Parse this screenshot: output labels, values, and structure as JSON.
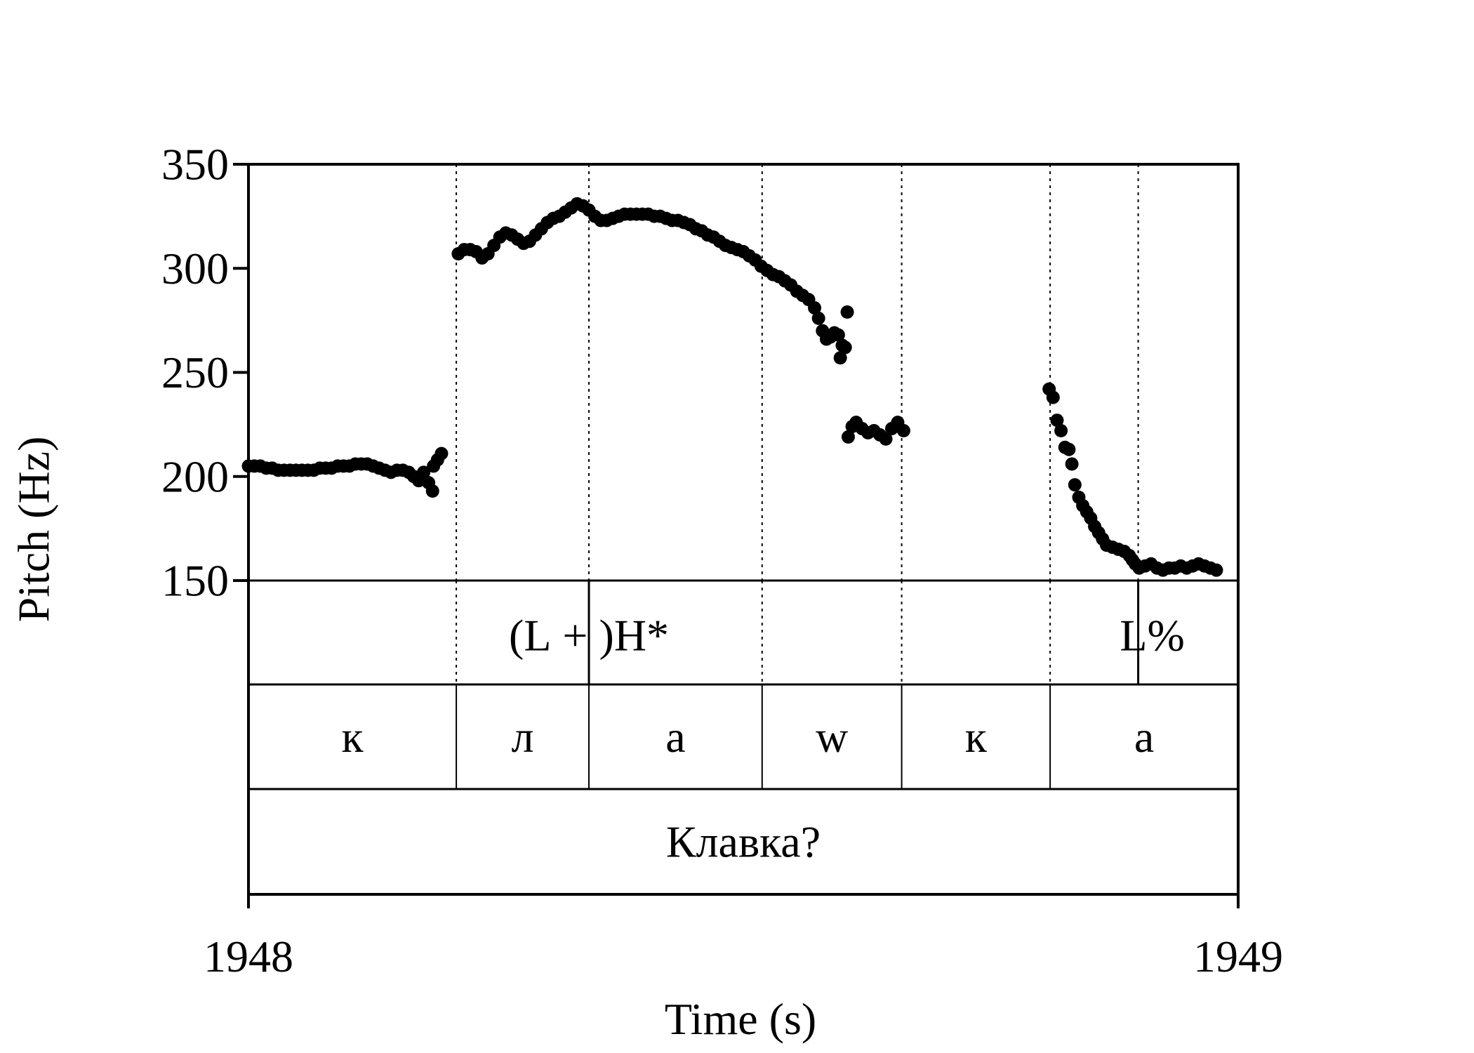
{
  "chart_data": {
    "type": "scatter",
    "title": "",
    "xlabel": "Time (s)",
    "ylabel": "Pitch (Hz)",
    "xlim": [
      1948,
      1949
    ],
    "ylim": [
      150,
      350
    ],
    "x_tick_labels": [
      "1948",
      "1949"
    ],
    "y_tick_labels": [
      "150",
      "200",
      "250",
      "300",
      "350"
    ],
    "y_ticks": [
      150,
      200,
      250,
      300,
      350
    ],
    "grid": false,
    "marker_color": "#000000",
    "boundaries": [
      1948.21,
      1948.344,
      1948.519,
      1948.66,
      1948.81,
      1948.899
    ],
    "tiers": {
      "tones": {
        "labels": [
          "(L + )H*",
          "L%"
        ],
        "points": [
          1948.344,
          1948.899
        ]
      },
      "segments": [
        {
          "label": "к",
          "start": 1948.0,
          "end": 1948.21
        },
        {
          "label": "л",
          "start": 1948.21,
          "end": 1948.344
        },
        {
          "label": "а",
          "start": 1948.344,
          "end": 1948.519
        },
        {
          "label": "w",
          "start": 1948.519,
          "end": 1948.66
        },
        {
          "label": "к",
          "start": 1948.66,
          "end": 1948.81
        },
        {
          "label": "а",
          "start": 1948.81,
          "end": 1949.0
        }
      ],
      "word": "Клавка?"
    },
    "series": [
      {
        "points": [
          [
            1948.0,
            205
          ],
          [
            1948.006,
            205
          ],
          [
            1948.012,
            205
          ],
          [
            1948.018,
            204
          ],
          [
            1948.024,
            204
          ],
          [
            1948.03,
            203
          ],
          [
            1948.036,
            203
          ],
          [
            1948.042,
            203
          ],
          [
            1948.048,
            203
          ],
          [
            1948.054,
            203
          ],
          [
            1948.06,
            203
          ],
          [
            1948.066,
            203
          ],
          [
            1948.072,
            204
          ],
          [
            1948.078,
            204
          ],
          [
            1948.084,
            204
          ],
          [
            1948.09,
            205
          ],
          [
            1948.096,
            205
          ],
          [
            1948.102,
            205
          ],
          [
            1948.108,
            206
          ],
          [
            1948.114,
            206
          ],
          [
            1948.12,
            206
          ],
          [
            1948.126,
            205
          ],
          [
            1948.132,
            204
          ],
          [
            1948.138,
            203
          ],
          [
            1948.144,
            202
          ],
          [
            1948.15,
            203
          ],
          [
            1948.156,
            203
          ],
          [
            1948.162,
            202
          ],
          [
            1948.167,
            200
          ],
          [
            1948.172,
            198
          ],
          [
            1948.177,
            202
          ],
          [
            1948.182,
            197
          ],
          [
            1948.186,
            193
          ],
          [
            1948.187,
            205
          ],
          [
            1948.191,
            208
          ],
          [
            1948.195,
            211
          ],
          [
            1948.212,
            307
          ],
          [
            1948.218,
            309
          ],
          [
            1948.224,
            309
          ],
          [
            1948.23,
            308
          ],
          [
            1948.236,
            305
          ],
          [
            1948.242,
            307
          ],
          [
            1948.248,
            311
          ],
          [
            1948.254,
            315
          ],
          [
            1948.26,
            317
          ],
          [
            1948.266,
            316
          ],
          [
            1948.272,
            314
          ],
          [
            1948.278,
            312
          ],
          [
            1948.284,
            313
          ],
          [
            1948.29,
            316
          ],
          [
            1948.296,
            319
          ],
          [
            1948.302,
            322
          ],
          [
            1948.308,
            324
          ],
          [
            1948.314,
            325
          ],
          [
            1948.32,
            327
          ],
          [
            1948.326,
            329
          ],
          [
            1948.332,
            331
          ],
          [
            1948.338,
            330
          ],
          [
            1948.344,
            328
          ],
          [
            1948.35,
            325
          ],
          [
            1948.356,
            323
          ],
          [
            1948.362,
            323
          ],
          [
            1948.368,
            324
          ],
          [
            1948.374,
            325
          ],
          [
            1948.38,
            326
          ],
          [
            1948.386,
            326
          ],
          [
            1948.392,
            326
          ],
          [
            1948.398,
            326
          ],
          [
            1948.404,
            326
          ],
          [
            1948.41,
            325
          ],
          [
            1948.416,
            325
          ],
          [
            1948.422,
            324
          ],
          [
            1948.428,
            323
          ],
          [
            1948.434,
            323
          ],
          [
            1948.44,
            322
          ],
          [
            1948.446,
            321
          ],
          [
            1948.452,
            319
          ],
          [
            1948.458,
            318
          ],
          [
            1948.464,
            316
          ],
          [
            1948.47,
            315
          ],
          [
            1948.476,
            313
          ],
          [
            1948.482,
            311
          ],
          [
            1948.488,
            310
          ],
          [
            1948.494,
            309
          ],
          [
            1948.5,
            308
          ],
          [
            1948.506,
            306
          ],
          [
            1948.512,
            304
          ],
          [
            1948.518,
            301
          ],
          [
            1948.524,
            299
          ],
          [
            1948.53,
            297
          ],
          [
            1948.536,
            296
          ],
          [
            1948.542,
            294
          ],
          [
            1948.548,
            292
          ],
          [
            1948.554,
            289
          ],
          [
            1948.56,
            287
          ],
          [
            1948.566,
            285
          ],
          [
            1948.572,
            281
          ],
          [
            1948.576,
            276
          ],
          [
            1948.58,
            270
          ],
          [
            1948.584,
            266
          ],
          [
            1948.588,
            267
          ],
          [
            1948.592,
            269
          ],
          [
            1948.596,
            268
          ],
          [
            1948.6,
            263
          ],
          [
            1948.598,
            257
          ],
          [
            1948.603,
            262
          ],
          [
            1948.605,
            279
          ],
          [
            1948.606,
            219
          ],
          [
            1948.61,
            224
          ],
          [
            1948.614,
            226
          ],
          [
            1948.62,
            223
          ],
          [
            1948.626,
            221
          ],
          [
            1948.632,
            222
          ],
          [
            1948.638,
            220
          ],
          [
            1948.644,
            218
          ],
          [
            1948.65,
            223
          ],
          [
            1948.656,
            226
          ],
          [
            1948.662,
            222
          ],
          [
            1948.809,
            242
          ],
          [
            1948.813,
            238
          ],
          [
            1948.817,
            227
          ],
          [
            1948.821,
            222
          ],
          [
            1948.825,
            214
          ],
          [
            1948.829,
            213
          ],
          [
            1948.832,
            206
          ],
          [
            1948.835,
            196
          ],
          [
            1948.839,
            190
          ],
          [
            1948.843,
            186
          ],
          [
            1948.847,
            183
          ],
          [
            1948.851,
            180
          ],
          [
            1948.855,
            176
          ],
          [
            1948.859,
            173
          ],
          [
            1948.863,
            170
          ],
          [
            1948.867,
            167
          ],
          [
            1948.873,
            166
          ],
          [
            1948.879,
            165
          ],
          [
            1948.885,
            164
          ],
          [
            1948.89,
            162
          ],
          [
            1948.893,
            160
          ],
          [
            1948.896,
            158
          ],
          [
            1948.9,
            156
          ],
          [
            1948.906,
            157
          ],
          [
            1948.912,
            158
          ],
          [
            1948.918,
            156
          ],
          [
            1948.924,
            155
          ],
          [
            1948.93,
            156
          ],
          [
            1948.936,
            156
          ],
          [
            1948.942,
            157
          ],
          [
            1948.948,
            156
          ],
          [
            1948.954,
            157
          ],
          [
            1948.96,
            158
          ],
          [
            1948.966,
            157
          ],
          [
            1948.972,
            156
          ],
          [
            1948.978,
            155
          ]
        ]
      }
    ]
  }
}
